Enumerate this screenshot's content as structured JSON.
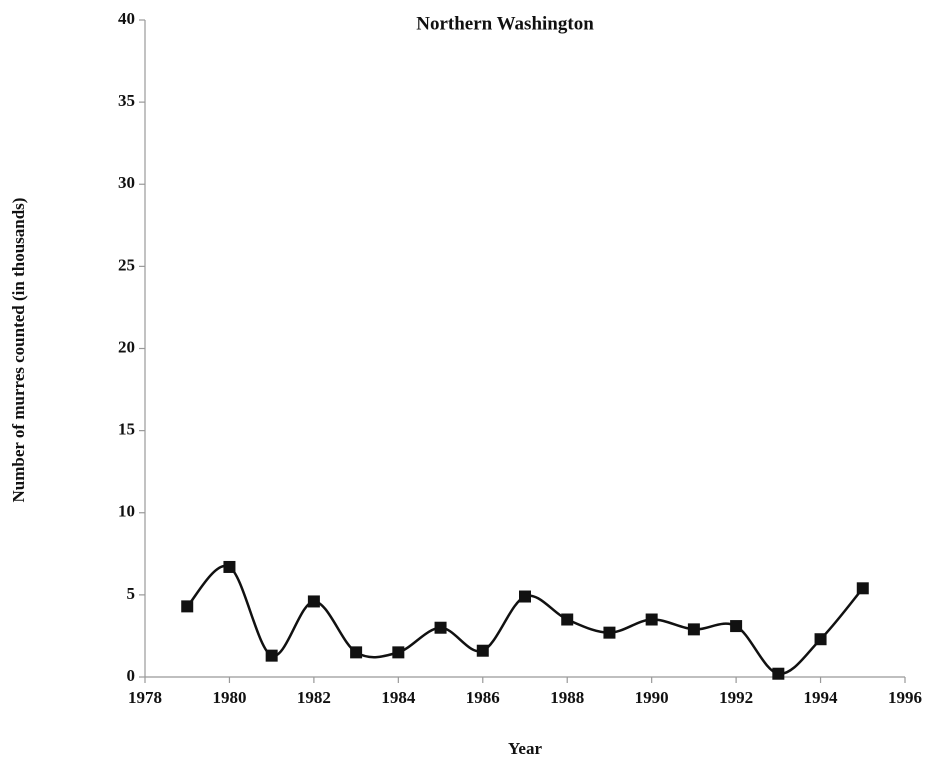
{
  "chart_data": {
    "type": "line",
    "title": "Northern Washington",
    "xlabel": "Year",
    "ylabel": "Number of murres counted (in thousands)",
    "x": [
      1979,
      1980,
      1981,
      1982,
      1983,
      1984,
      1985,
      1986,
      1987,
      1988,
      1989,
      1990,
      1991,
      1992,
      1993,
      1994,
      1995
    ],
    "series": [
      {
        "name": "Northern Washington",
        "color": "#111111",
        "values": [
          4.3,
          6.7,
          1.3,
          4.6,
          1.5,
          1.5,
          3.0,
          1.6,
          4.9,
          3.5,
          2.7,
          3.5,
          2.9,
          3.1,
          0.2,
          2.3,
          5.4
        ]
      }
    ],
    "xlim": [
      1978,
      1996
    ],
    "xticks": [
      1978,
      1980,
      1982,
      1984,
      1986,
      1988,
      1990,
      1992,
      1994,
      1996
    ],
    "ylim": [
      0,
      40
    ],
    "yticks": [
      0,
      5,
      10,
      15,
      20,
      25,
      30,
      35,
      40
    ],
    "smooth": true,
    "marker": "square",
    "grid": false
  }
}
